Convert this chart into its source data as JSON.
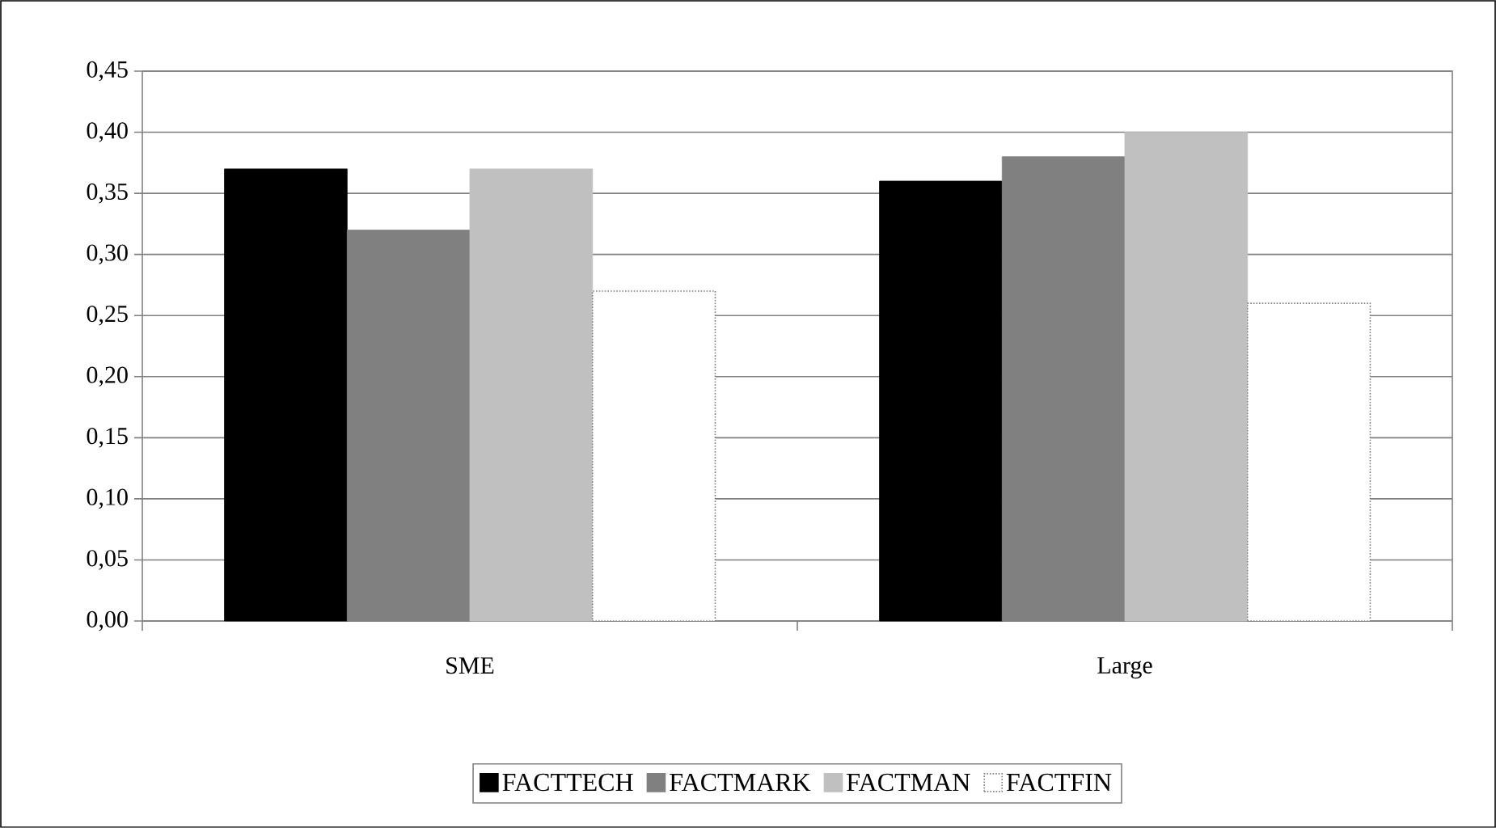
{
  "chart_data": {
    "type": "bar",
    "categories": [
      "SME",
      "Large"
    ],
    "series": [
      {
        "name": "FACTTECH",
        "color": "#000000",
        "values": [
          0.37,
          0.36
        ]
      },
      {
        "name": "FACTMARK",
        "color": "#808080",
        "values": [
          0.32,
          0.38
        ]
      },
      {
        "name": "FACTMAN",
        "color": "#c0c0c0",
        "values": [
          0.37,
          0.4
        ]
      },
      {
        "name": "FACTFIN",
        "color": "#ffffff",
        "values": [
          0.27,
          0.26
        ]
      }
    ],
    "ylim": [
      0,
      0.45
    ],
    "yticks": [
      {
        "value": 0,
        "label": "0,00"
      },
      {
        "value": 0.05,
        "label": "0,05"
      },
      {
        "value": 0.1,
        "label": "0,10"
      },
      {
        "value": 0.15,
        "label": "0,15"
      },
      {
        "value": 0.2,
        "label": "0,20"
      },
      {
        "value": 0.25,
        "label": "0,25"
      },
      {
        "value": 0.3,
        "label": "0,30"
      },
      {
        "value": 0.35,
        "label": "0,35"
      },
      {
        "value": 0.4,
        "label": "0,40"
      },
      {
        "value": 0.45,
        "label": "0,45"
      }
    ],
    "grid": "y",
    "legend": "bottom"
  }
}
